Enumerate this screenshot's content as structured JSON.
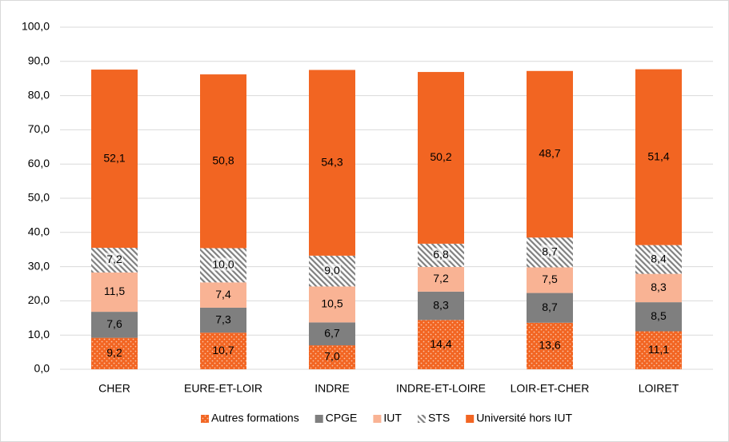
{
  "chart_data": {
    "type": "stacked_bar",
    "categories": [
      "CHER",
      "EURE-ET-LOIR",
      "INDRE",
      "INDRE-ET-LOIRE",
      "LOIR-ET-CHER",
      "LOIRET"
    ],
    "series": [
      {
        "name": "Autres formations",
        "color": "#f26522",
        "pattern": "dots",
        "values": [
          9.2,
          10.7,
          7.0,
          14.4,
          13.6,
          11.1
        ],
        "value_labels": [
          "9,2",
          "10,7",
          "7,0",
          "14,4",
          "13,6",
          "11,1"
        ]
      },
      {
        "name": "CPGE",
        "color": "#7f7f7f",
        "values": [
          7.6,
          7.3,
          6.7,
          8.3,
          8.7,
          8.5
        ],
        "value_labels": [
          "7,6",
          "7,3",
          "6,7",
          "8,3",
          "8,7",
          "8,5"
        ]
      },
      {
        "name": "IUT",
        "color": "#f9b394",
        "values": [
          11.5,
          7.4,
          10.5,
          7.2,
          7.5,
          8.3
        ],
        "value_labels": [
          "11,5",
          "7,4",
          "10,5",
          "7,2",
          "7,5",
          "8,3"
        ]
      },
      {
        "name": "STS",
        "color": "#808080",
        "pattern": "hatch",
        "values": [
          7.2,
          10.0,
          9.0,
          6.8,
          8.7,
          8.4
        ],
        "value_labels": [
          "7,2",
          "10,0",
          "9,0",
          "6,8",
          "8,7",
          "8,4"
        ]
      },
      {
        "name": "Université hors IUT",
        "color": "#f26522",
        "values": [
          52.1,
          50.8,
          54.3,
          50.2,
          48.7,
          51.4
        ],
        "value_labels": [
          "52,1",
          "50,8",
          "54,3",
          "50,2",
          "48,7",
          "51,4"
        ]
      }
    ],
    "ylim": [
      0,
      100
    ],
    "yticks": [
      {
        "value": 0,
        "label": "0,0"
      },
      {
        "value": 10,
        "label": "10,0"
      },
      {
        "value": 20,
        "label": "20,0"
      },
      {
        "value": 30,
        "label": "30,0"
      },
      {
        "value": 40,
        "label": "40,0"
      },
      {
        "value": 50,
        "label": "50,0"
      },
      {
        "value": 60,
        "label": "60,0"
      },
      {
        "value": 70,
        "label": "70,0"
      },
      {
        "value": 80,
        "label": "80,0"
      },
      {
        "value": 90,
        "label": "90,0"
      },
      {
        "value": 100,
        "label": "100,0"
      }
    ],
    "grid": true,
    "legend": "bottom"
  }
}
